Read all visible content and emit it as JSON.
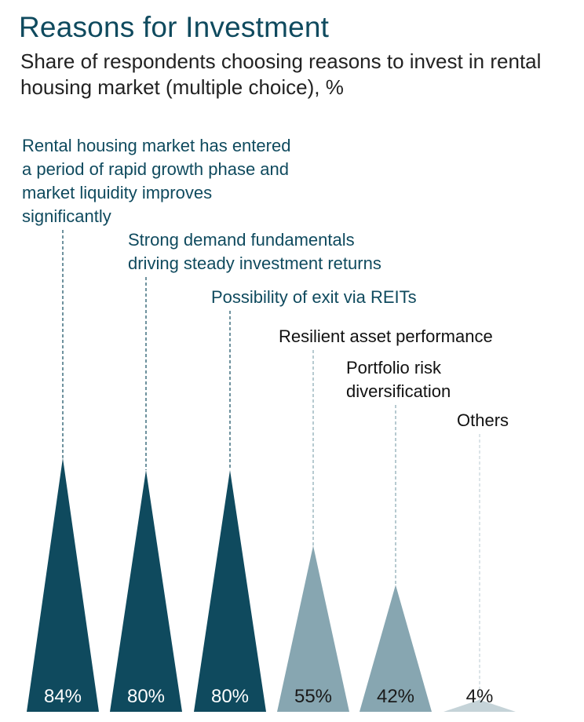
{
  "title": "Reasons for Investment",
  "subtitle": "Share of respondents choosing reasons to invest in rental housing market (multiple choice), %",
  "chart_data": {
    "type": "bar",
    "title": "Reasons for Investment",
    "subtitle": "Share of respondents choosing reasons to invest in rental housing market (multiple choice), %",
    "categories": [
      "Rental housing market has entered a period of rapid growth phase and market liquidity improves significantly",
      "Strong demand fundamentals driving steady investment returns",
      "Possibility of exit via REITs",
      "Resilient asset performance",
      "Portfolio risk diversification",
      "Others"
    ],
    "category_lines": [
      [
        "Rental housing market has entered",
        "a period of rapid growth phase and",
        "market liquidity improves",
        "significantly"
      ],
      [
        "Strong demand fundamentals",
        "driving steady investment returns"
      ],
      [
        "Possibility of exit via REITs"
      ],
      [
        "Resilient asset performance"
      ],
      [
        "Portfolio risk",
        "diversification"
      ],
      [
        "Others"
      ]
    ],
    "values": [
      84,
      80,
      80,
      55,
      42,
      4
    ],
    "value_labels": [
      "84%",
      "80%",
      "80%",
      "55%",
      "42%",
      "4%"
    ],
    "colors": [
      "#0f4a5e",
      "#0f4a5e",
      "#0f4a5e",
      "#87a6b1",
      "#87a6b1",
      "#c5d3d8"
    ],
    "label_colors": [
      "#0f4a5e",
      "#0f4a5e",
      "#0f4a5e",
      "#111111",
      "#111111",
      "#111111"
    ],
    "value_label_colors": [
      "#ffffff",
      "#ffffff",
      "#ffffff",
      "#1a1a1a",
      "#1a1a1a",
      "#1a1a1a"
    ],
    "leader_colors": [
      "#0f4a5e",
      "#0f4a5e",
      "#0f4a5e",
      "#87a6b1",
      "#87a6b1",
      "#c5d3d8"
    ],
    "ylim": [
      0,
      100
    ],
    "grid": false,
    "legend": "none"
  }
}
